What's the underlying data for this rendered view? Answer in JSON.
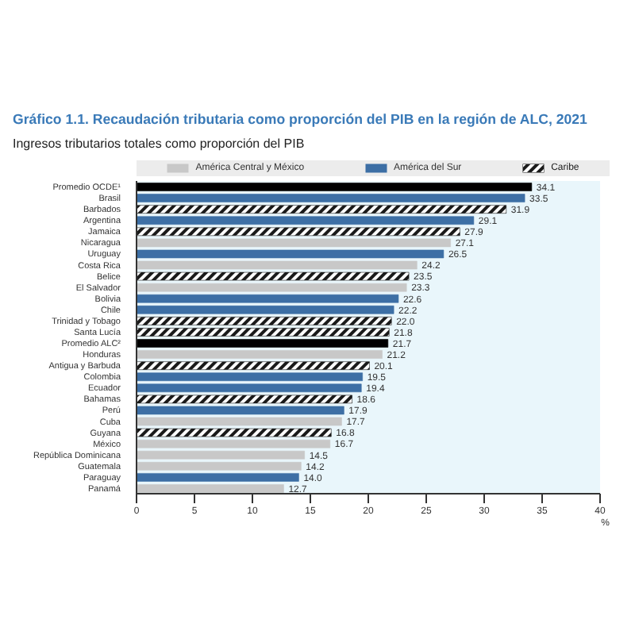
{
  "chart_data": {
    "type": "bar",
    "orientation": "horizontal",
    "title": "Gráfico 1.1. Recaudación tributaria como proporción del PIB en la región de ALC, 2021",
    "subtitle": "Ingresos tributarios totales como proporción del PIB",
    "xlabel": "%",
    "categories": [
      "Promedio OCDE¹",
      "Brasil",
      "Barbados",
      "Argentina",
      "Jamaica",
      "Nicaragua",
      "Uruguay",
      "Costa Rica",
      "Belice",
      "El Salvador",
      "Bolivia",
      "Chile",
      "Trinidad y Tobago",
      "Santa Lucía",
      "Promedio ALC²",
      "Honduras",
      "Antigua y Barbuda",
      "Colombia",
      "Ecuador",
      "Bahamas",
      "Perú",
      "Cuba",
      "Guyana",
      "México",
      "República Dominicana",
      "Guatemala",
      "Paraguay",
      "Panamá"
    ],
    "series": [
      {
        "color": "#000000",
        "values": [
          34.1,
          null,
          null,
          null,
          null,
          null,
          null,
          null,
          null,
          null,
          null,
          null,
          null,
          null,
          21.7,
          null,
          null,
          null,
          null,
          null,
          null,
          null,
          null,
          null,
          null,
          null,
          null,
          null
        ],
        "value_labels": [
          "34.1",
          null,
          null,
          null,
          null,
          null,
          null,
          null,
          null,
          null,
          null,
          null,
          null,
          null,
          "21.7",
          null,
          null,
          null,
          null,
          null,
          null,
          null,
          null,
          null,
          null,
          null,
          null,
          null
        ]
      },
      {
        "name": "América Central y México",
        "color": "#c8c8c8",
        "values": [
          null,
          null,
          null,
          null,
          null,
          27.1,
          null,
          24.2,
          null,
          23.3,
          null,
          null,
          null,
          null,
          null,
          21.2,
          null,
          null,
          null,
          null,
          null,
          17.7,
          null,
          16.7,
          14.5,
          14.2,
          null,
          12.7
        ],
        "value_labels": [
          null,
          null,
          null,
          null,
          null,
          "27.1",
          null,
          "24.2",
          null,
          "23.3",
          null,
          null,
          null,
          null,
          null,
          "21.2",
          null,
          null,
          null,
          null,
          null,
          "17.7",
          null,
          "16.7",
          "14.5",
          "14.2",
          null,
          "12.7"
        ]
      },
      {
        "name": "América del Sur",
        "color": "#3d6fa5",
        "values": [
          null,
          33.5,
          null,
          29.1,
          null,
          null,
          26.5,
          null,
          null,
          null,
          22.6,
          22.2,
          null,
          null,
          null,
          null,
          null,
          19.5,
          19.4,
          null,
          17.9,
          null,
          null,
          null,
          null,
          null,
          14.0,
          null
        ],
        "value_labels": [
          null,
          "33.5",
          null,
          "29.1",
          null,
          null,
          "26.5",
          null,
          null,
          null,
          "22.6",
          "22.2",
          null,
          null,
          null,
          null,
          null,
          "19.5",
          "19.4",
          null,
          "17.9",
          null,
          null,
          null,
          null,
          null,
          "14.0",
          null
        ]
      },
      {
        "name": "Caribe",
        "color": "#1a1a1a",
        "values": [
          null,
          null,
          31.9,
          null,
          27.9,
          null,
          null,
          null,
          23.5,
          null,
          null,
          null,
          22.0,
          21.8,
          null,
          null,
          20.1,
          null,
          null,
          18.6,
          null,
          null,
          16.8,
          null,
          null,
          null,
          null,
          null
        ],
        "value_labels": [
          null,
          null,
          "31.9",
          null,
          "27.9",
          null,
          null,
          null,
          "23.5",
          null,
          null,
          null,
          "22.0",
          "21.8",
          null,
          null,
          "20.1",
          null,
          null,
          "18.6",
          null,
          null,
          "16.8",
          null,
          null,
          null,
          null,
          null
        ]
      }
    ],
    "xlim": [
      0,
      40
    ],
    "xticks": [
      0,
      5,
      10,
      15,
      20,
      25,
      30,
      35,
      40
    ],
    "legend": "top"
  }
}
